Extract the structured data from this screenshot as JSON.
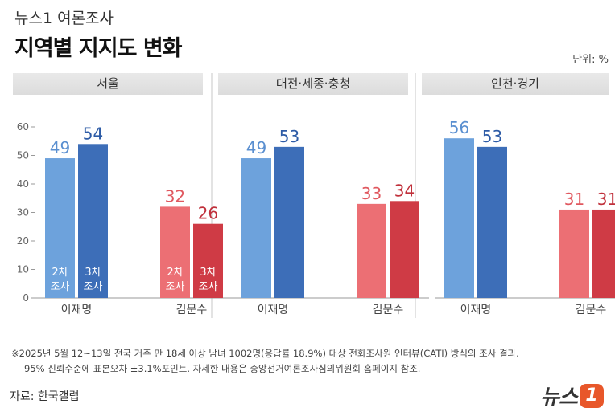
{
  "header": {
    "brand_line": "뉴스1 여론조사",
    "title": "지역별 지지도 변화",
    "unit": "단위: %"
  },
  "colors": {
    "lee_2": "#6da2dc",
    "lee_3": "#3d6eb8",
    "kim_2": "#ec6f74",
    "kim_3": "#cf3b45"
  },
  "bar_inner_labels": {
    "round2": "2차\n조사",
    "round3": "3차\n조사"
  },
  "chart_data": {
    "type": "bar",
    "ylim": [
      0,
      60
    ],
    "yticks": [
      0,
      10,
      20,
      30,
      40,
      50,
      60
    ],
    "series_names": [
      "2차 조사",
      "3차 조사"
    ],
    "panels": [
      {
        "title": "서울",
        "categories": [
          "이재명",
          "김문수"
        ],
        "round2": [
          49,
          32
        ],
        "round3": [
          54,
          26
        ]
      },
      {
        "title": "대전·세종·충청",
        "categories": [
          "이재명",
          "김문수"
        ],
        "round2": [
          49,
          33
        ],
        "round3": [
          53,
          34
        ]
      },
      {
        "title": "인천·경기",
        "categories": [
          "이재명",
          "김문수"
        ],
        "round2": [
          56,
          31
        ],
        "round3": [
          53,
          31
        ]
      }
    ]
  },
  "notes": {
    "line1": "※2025년 5월 12~13일 전국 거주 만 18세 이상 남녀 1002명(응답률 18.9%) 대상 전화조사원 인터뷰(CATI) 방식의 조사 결과.",
    "line2": "95% 신뢰수준에 표본오차 ±3.1%포인트. 자세한 내용은 중앙선거여론조사심의위원회 홈페이지 참조."
  },
  "source": "자료: 한국갤럽",
  "logo": {
    "text": "뉴스",
    "badge": "1"
  }
}
